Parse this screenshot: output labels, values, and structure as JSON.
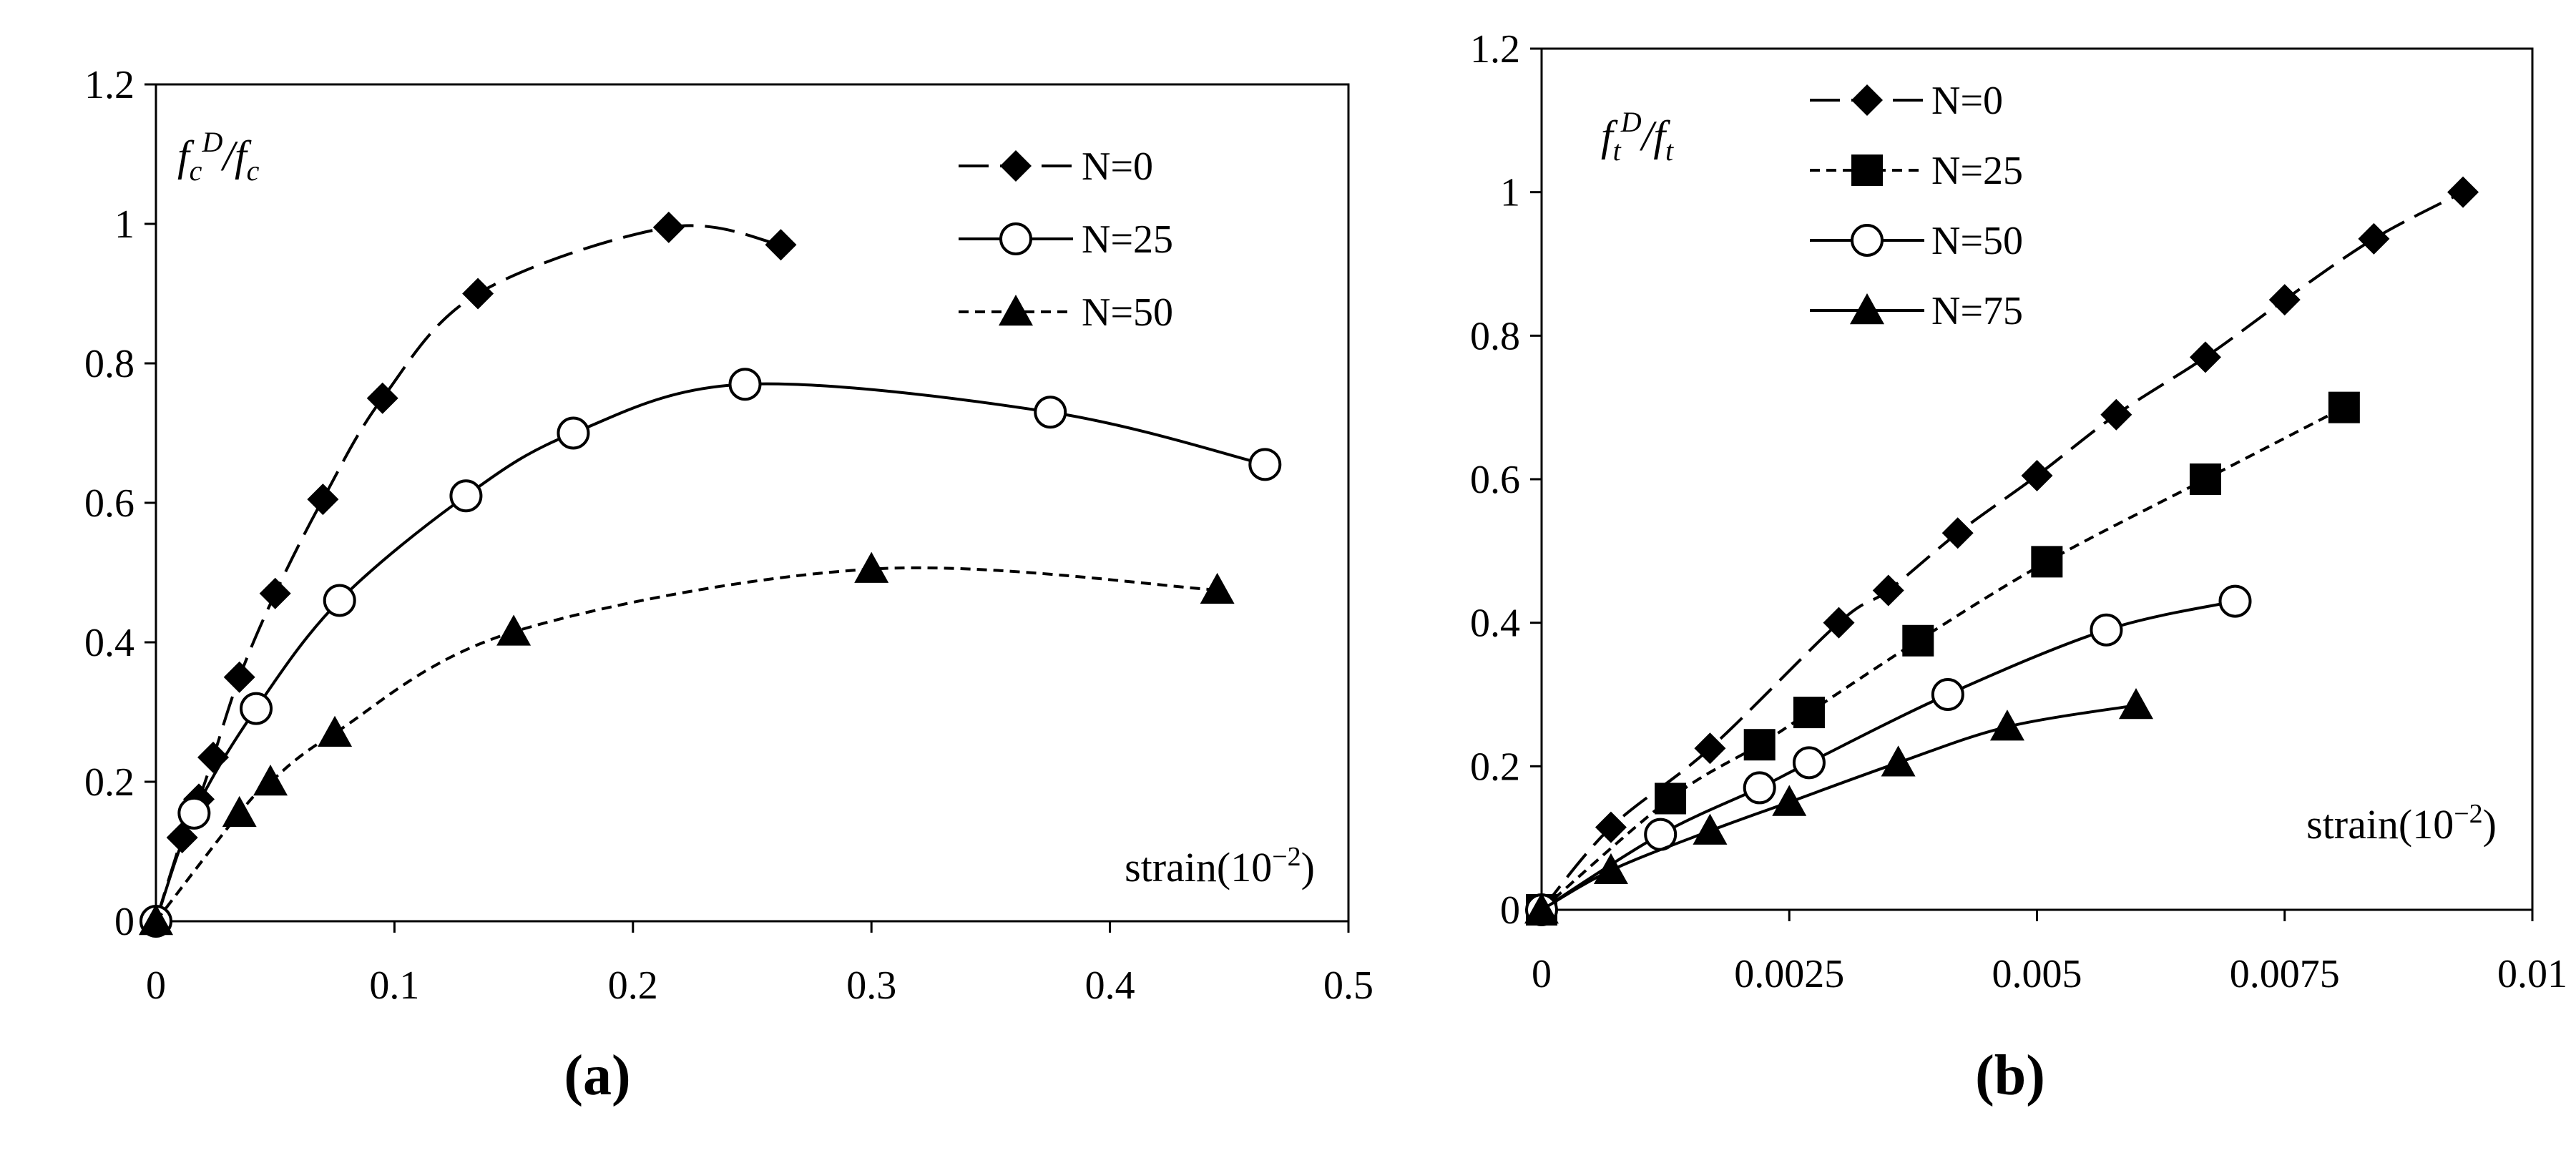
{
  "chart_data": [
    {
      "type": "line",
      "caption": "(a)",
      "ylabel_base": "f",
      "ylabel_sub1": "c",
      "ylabel_sup": "D",
      "ylabel_mid": "/f",
      "ylabel_sub2": "c",
      "xlabel_base": "strain(10",
      "xlabel_sup": "−2",
      "xlabel_end": ")",
      "xlim": [
        0,
        0.5
      ],
      "ylim": [
        0,
        1.2
      ],
      "xticks": [
        0,
        0.1,
        0.2,
        0.3,
        0.4,
        0.5
      ],
      "xtick_labels": [
        "0",
        "0.1",
        "0.2",
        "0.3",
        "0.4",
        "0.5"
      ],
      "yticks": [
        0,
        0.2,
        0.4,
        0.6,
        0.8,
        1.0,
        1.2
      ],
      "ytick_labels": [
        "0",
        "0.2",
        "0.4",
        "0.6",
        "0.8",
        "1",
        "1.2"
      ],
      "series": [
        {
          "name": "N=0",
          "marker": "diamond",
          "line": "longdash",
          "x": [
            0,
            0.011,
            0.018,
            0.024,
            0.035,
            0.05,
            0.07,
            0.095,
            0.135,
            0.215,
            0.262
          ],
          "y": [
            0,
            0.12,
            0.175,
            0.235,
            0.35,
            0.47,
            0.605,
            0.75,
            0.9,
            0.995,
            0.97
          ]
        },
        {
          "name": "N=25",
          "marker": "circle",
          "line": "solid",
          "x": [
            0,
            0.016,
            0.042,
            0.077,
            0.13,
            0.175,
            0.247,
            0.375,
            0.465
          ],
          "y": [
            0,
            0.155,
            0.305,
            0.46,
            0.61,
            0.7,
            0.77,
            0.73,
            0.655
          ]
        },
        {
          "name": "N=50",
          "marker": "triangle",
          "line": "shortdash",
          "x": [
            0,
            0.035,
            0.048,
            0.075,
            0.15,
            0.3,
            0.445
          ],
          "y": [
            0,
            0.155,
            0.2,
            0.27,
            0.415,
            0.505,
            0.475
          ]
        }
      ]
    },
    {
      "type": "line",
      "caption": "(b)",
      "ylabel_base": "f",
      "ylabel_sub1": "t",
      "ylabel_sup": "D",
      "ylabel_mid": "/f",
      "ylabel_sub2": "t",
      "xlabel_base": "strain(10",
      "xlabel_sup": "−2",
      "xlabel_end": ")",
      "xlim": [
        0,
        0.01
      ],
      "ylim": [
        0,
        1.2
      ],
      "xticks": [
        0,
        0.0025,
        0.005,
        0.0075,
        0.01
      ],
      "xtick_labels": [
        "0",
        "0.0025",
        "0.005",
        "0.0075",
        "0.01"
      ],
      "yticks": [
        0,
        0.2,
        0.4,
        0.6,
        0.8,
        1.0,
        1.2
      ],
      "ytick_labels": [
        "0",
        "0.2",
        "0.4",
        "0.6",
        "0.8",
        "1",
        "1.2"
      ],
      "series": [
        {
          "name": "N=0",
          "marker": "diamond",
          "line": "longdash",
          "x": [
            0,
            0.0007,
            0.0017,
            0.003,
            0.0035,
            0.0042,
            0.005,
            0.0058,
            0.0067,
            0.0075,
            0.0084,
            0.0093
          ],
          "y": [
            0,
            0.115,
            0.225,
            0.4,
            0.445,
            0.525,
            0.605,
            0.69,
            0.77,
            0.85,
            0.935,
            1.0
          ]
        },
        {
          "name": "N=25",
          "marker": "square",
          "line": "shortdash",
          "x": [
            0,
            0.0013,
            0.0022,
            0.0027,
            0.0038,
            0.0051,
            0.0067,
            0.0081
          ],
          "y": [
            0,
            0.155,
            0.23,
            0.275,
            0.375,
            0.485,
            0.6,
            0.7
          ]
        },
        {
          "name": "N=50",
          "marker": "circle",
          "line": "solid",
          "x": [
            0,
            0.0012,
            0.0022,
            0.0027,
            0.0041,
            0.0057,
            0.007
          ],
          "y": [
            0,
            0.105,
            0.17,
            0.205,
            0.3,
            0.39,
            0.43
          ]
        },
        {
          "name": "N=75",
          "marker": "triangle",
          "line": "solid",
          "x": [
            0,
            0.0007,
            0.0017,
            0.0025,
            0.0036,
            0.0047,
            0.006
          ],
          "y": [
            0,
            0.055,
            0.11,
            0.15,
            0.205,
            0.255,
            0.285
          ]
        }
      ]
    }
  ]
}
